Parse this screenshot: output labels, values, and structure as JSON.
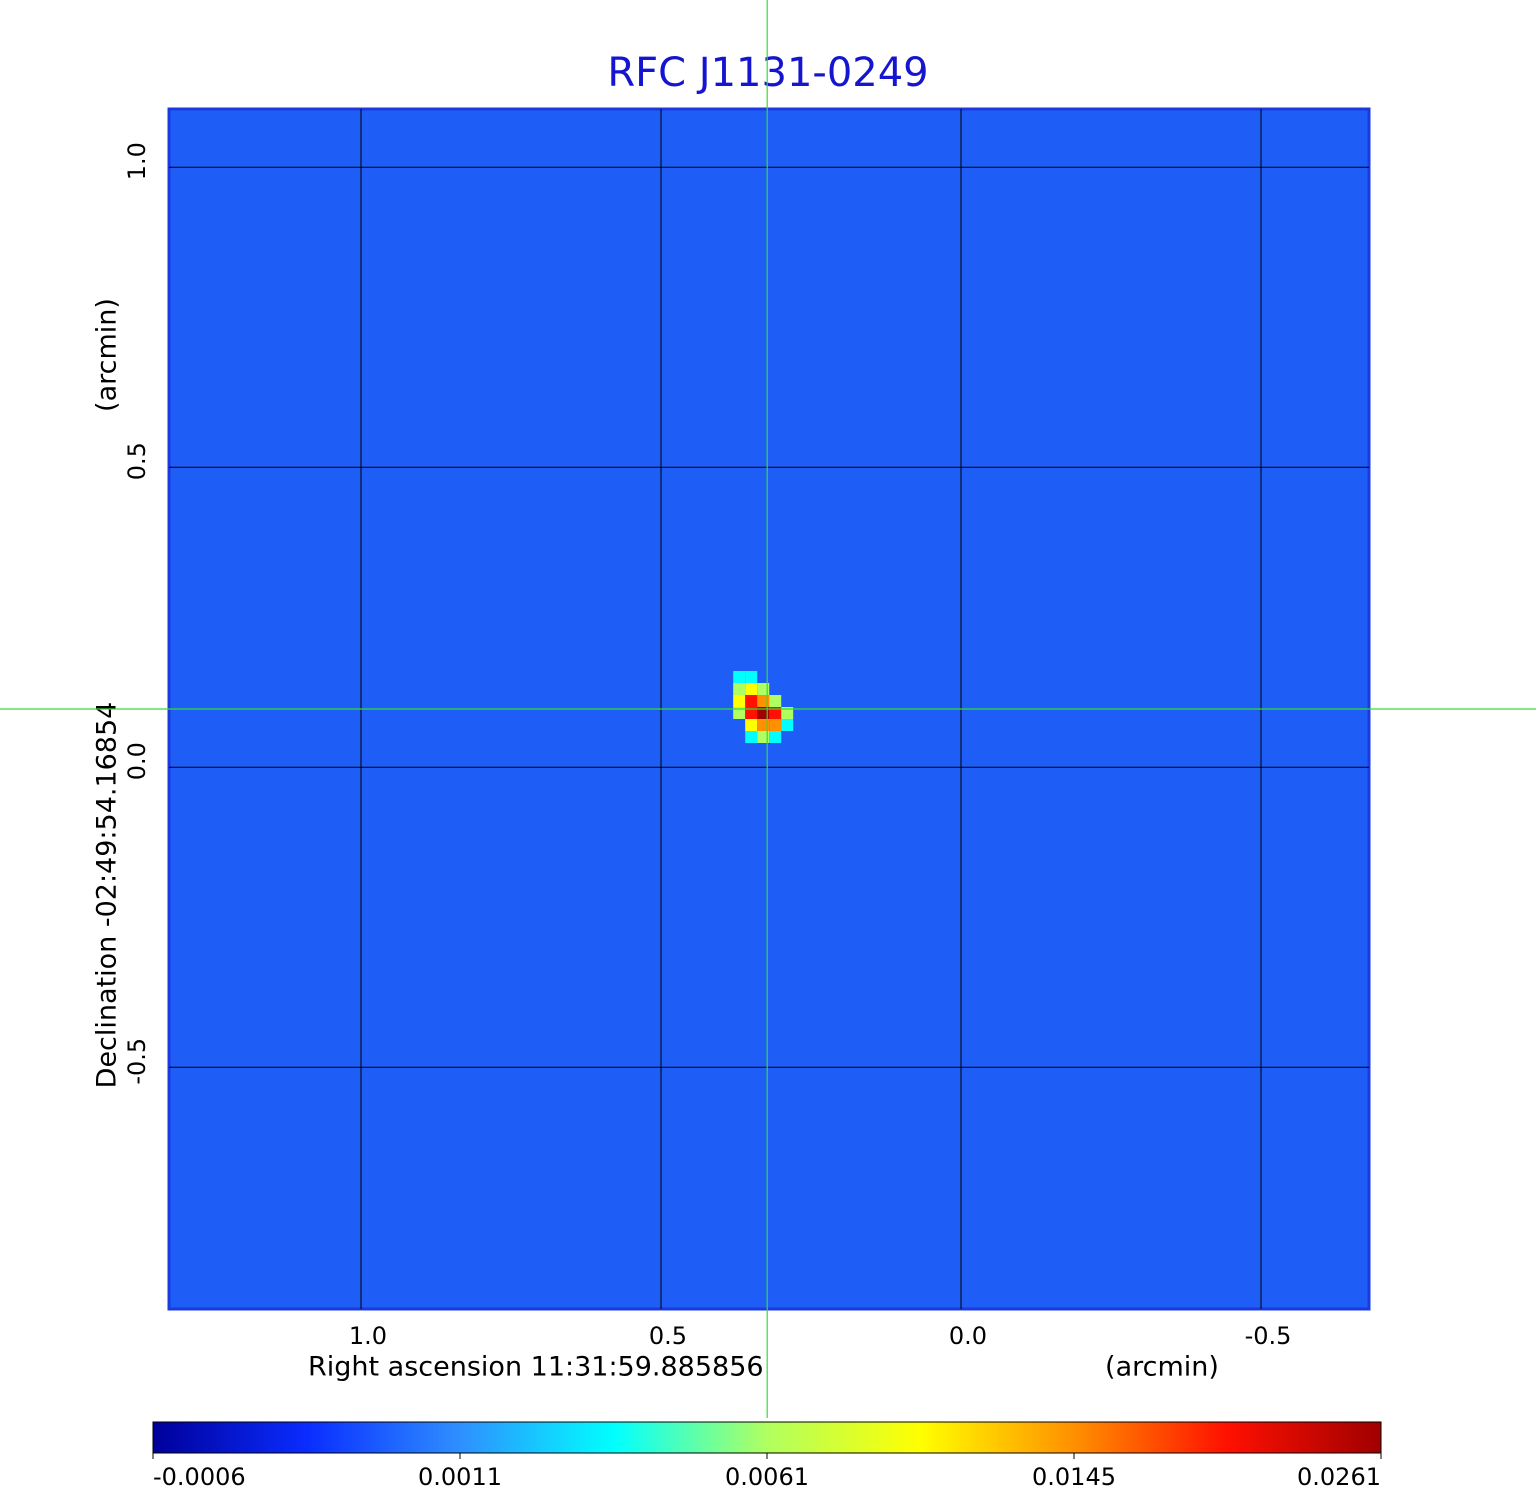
{
  "chart_data": {
    "type": "image",
    "title": "RFC J1131-0249",
    "x_label": "Right ascension  11:31:59.885856",
    "x_unit": "(arcmin)",
    "y_label": "Declination  -02:49:54.16854",
    "y_unit": "(arcmin)",
    "xlim": [
      1.32,
      -0.68
    ],
    "ylim": [
      -0.903,
      1.097
    ],
    "xticks": [
      {
        "value": 1,
        "label": "1.0"
      },
      0.5,
      {
        "value": 0,
        "label": "0.0"
      },
      -0.5
    ],
    "yticks": [
      {
        "value": 1,
        "label": "1.0"
      },
      0.5,
      {
        "value": 0,
        "label": "0.0"
      },
      -0.5
    ],
    "grid": true,
    "field_color": "#1f5ef6",
    "crosshair": {
      "x": 0.323,
      "y": 0.097,
      "color": "#33dd33"
    },
    "colormap": [
      "#00009a",
      "#0a2cff",
      "#2e8fff",
      "#00ffff",
      "#b0ff60",
      "#ffff00",
      "#ff9000",
      "#ff1000",
      "#a00000"
    ],
    "colorbar_ticks": [
      -0.0006,
      0.0011,
      0.0061,
      0.0145,
      0.0261
    ]
  }
}
